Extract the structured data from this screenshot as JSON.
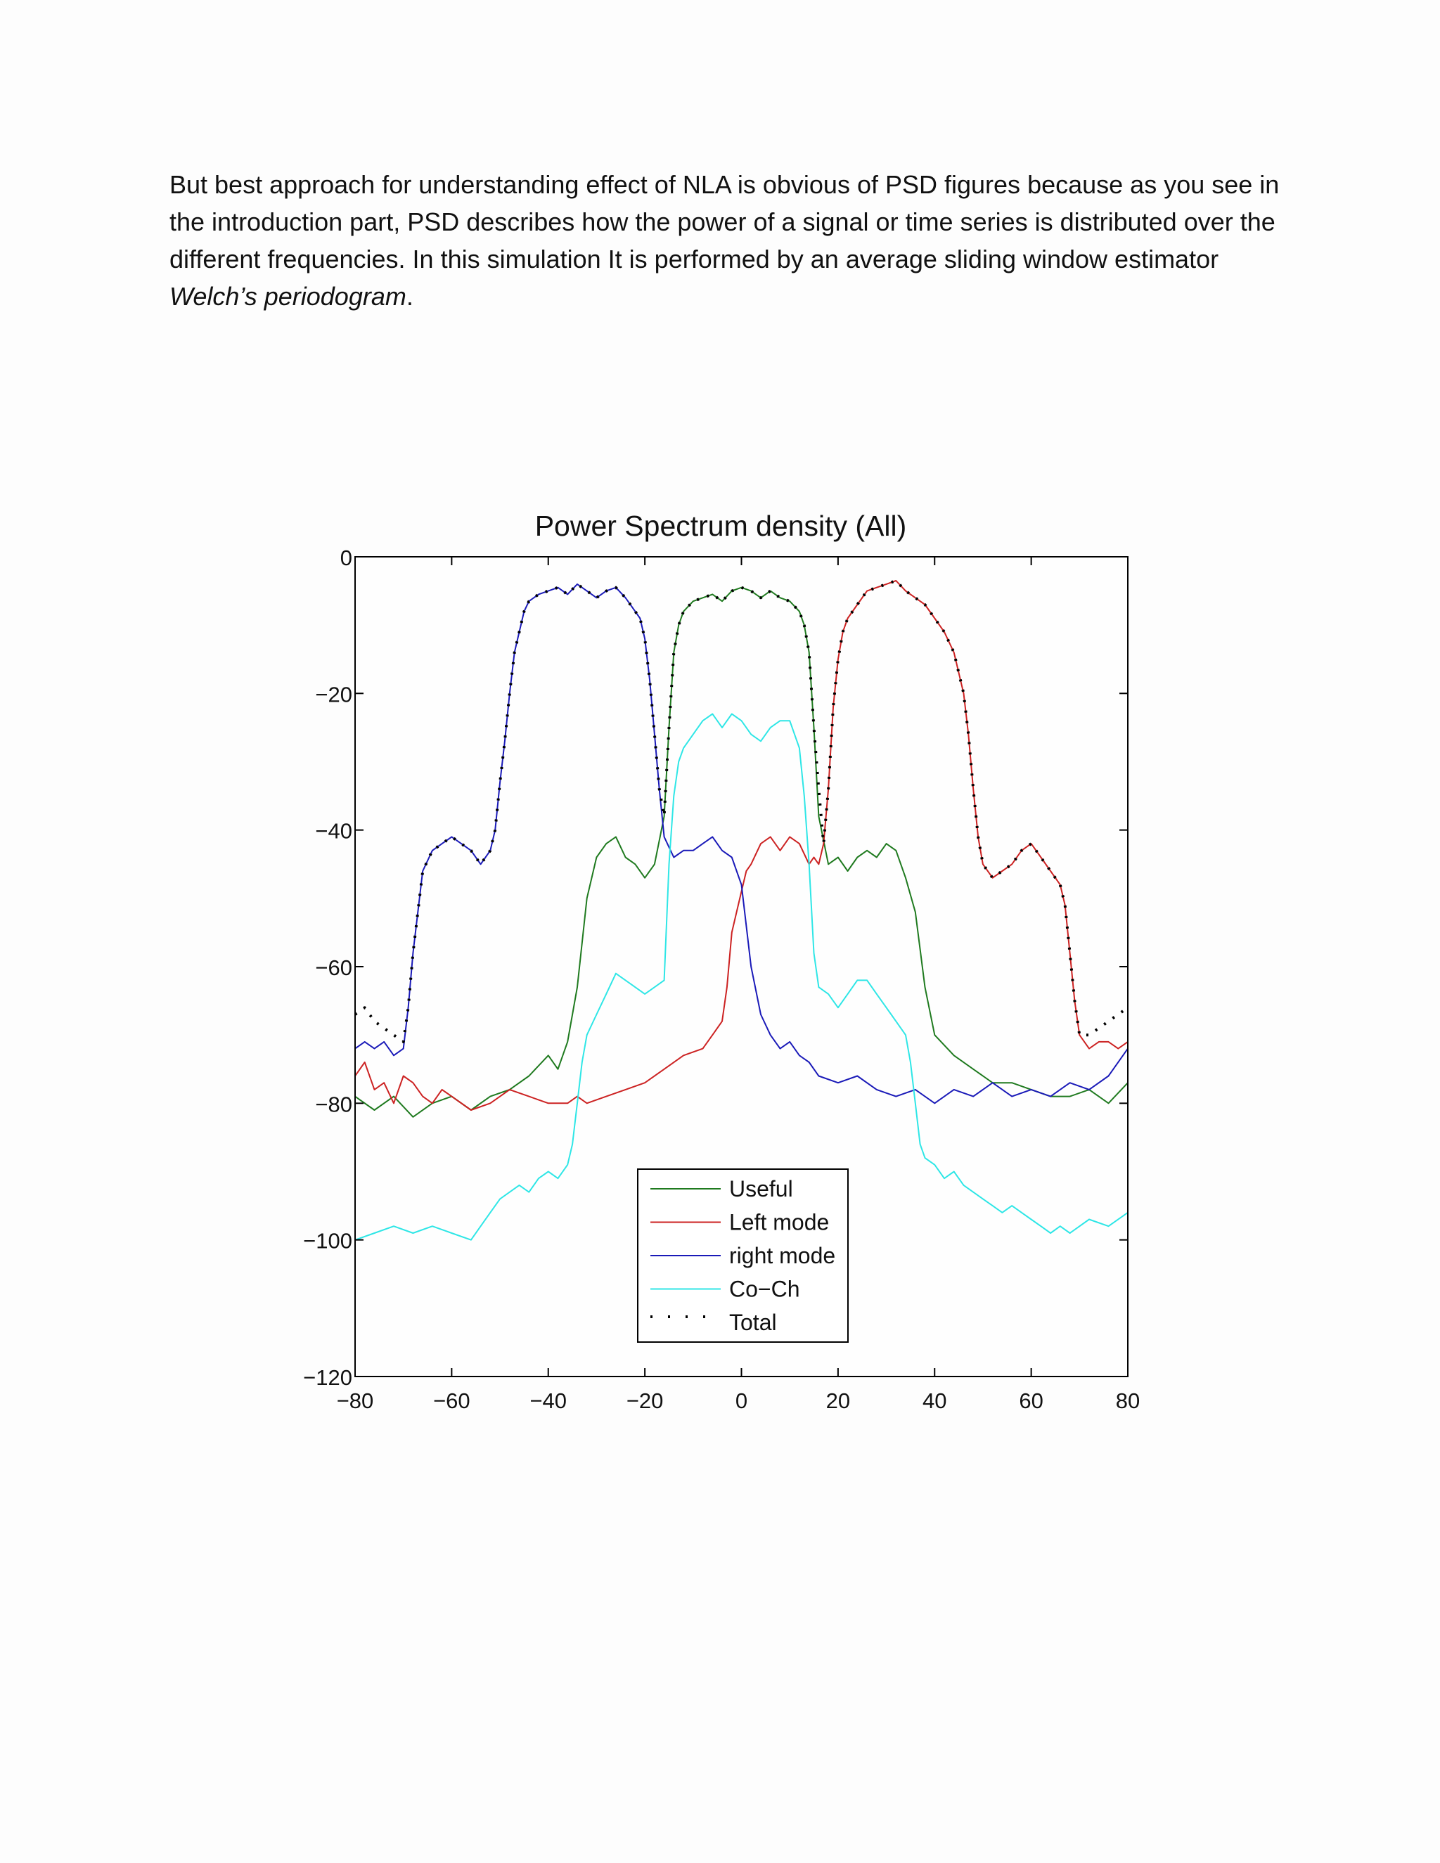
{
  "document": {
    "paragraph_lead": "But best approach for understanding effect of NLA is obvious of PSD figures because as you see in the introduction part, PSD describes how the power of a signal or time series is distributed over the different frequencies. In this simulation It is performed by an average sliding window estimator ",
    "paragraph_italic": "Welch’s periodogram",
    "paragraph_tail": "."
  },
  "chart_data": {
    "type": "line",
    "title": "Power Spectrum density (All)",
    "xlabel": "",
    "ylabel": "",
    "xlim": [
      -80,
      80
    ],
    "ylim": [
      -120,
      0
    ],
    "xticks": [
      -80,
      -60,
      -40,
      -20,
      0,
      20,
      40,
      60,
      80
    ],
    "yticks": [
      0,
      -20,
      -40,
      -60,
      -80,
      -100,
      -120
    ],
    "grid": false,
    "legend_position": "bottom-center",
    "series": [
      {
        "name": "Useful",
        "color": "#1f7a1f",
        "style": "solid",
        "x": [
          -80,
          -76,
          -72,
          -68,
          -64,
          -60,
          -56,
          -52,
          -48,
          -44,
          -40,
          -38,
          -36,
          -34,
          -32,
          -30,
          -28,
          -26,
          -24,
          -22,
          -20,
          -18,
          -16,
          -15,
          -14,
          -13,
          -12,
          -10,
          -8,
          -6,
          -4,
          -2,
          0,
          2,
          4,
          6,
          8,
          10,
          12,
          13,
          14,
          15,
          16,
          18,
          20,
          22,
          24,
          26,
          28,
          30,
          32,
          34,
          36,
          38,
          40,
          44,
          48,
          52,
          56,
          60,
          64,
          68,
          72,
          76,
          80
        ],
        "y": [
          -79,
          -81,
          -79,
          -82,
          -80,
          -79,
          -81,
          -79,
          -78,
          -76,
          -73,
          -75,
          -71,
          -63,
          -50,
          -44,
          -42,
          -41,
          -44,
          -45,
          -47,
          -45,
          -38,
          -25,
          -14,
          -10,
          -8,
          -6.5,
          -6,
          -5.5,
          -6.5,
          -5,
          -4.5,
          -5,
          -6,
          -5,
          -6,
          -6.5,
          -8,
          -10,
          -14,
          -25,
          -38,
          -45,
          -44,
          -46,
          -44,
          -43,
          -44,
          -42,
          -43,
          -47,
          -52,
          -63,
          -70,
          -73,
          -75,
          -77,
          -77,
          -78,
          -79,
          -79,
          -78,
          -80,
          -77
        ]
      },
      {
        "name": "Left mode",
        "color": "#cc2222",
        "style": "solid",
        "x": [
          -80,
          -78,
          -76,
          -74,
          -72,
          -70,
          -68,
          -66,
          -64,
          -62,
          -60,
          -56,
          -52,
          -48,
          -44,
          -40,
          -36,
          -34,
          -32,
          -28,
          -24,
          -20,
          -16,
          -12,
          -8,
          -6,
          -4,
          -3,
          -2,
          -1,
          0,
          1,
          2,
          4,
          6,
          8,
          10,
          12,
          14,
          15,
          16,
          17,
          18,
          19,
          20,
          21,
          22,
          24,
          26,
          28,
          30,
          32,
          34,
          36,
          38,
          40,
          42,
          44,
          46,
          47,
          48,
          49,
          50,
          52,
          54,
          56,
          58,
          60,
          62,
          64,
          66,
          67,
          68,
          69,
          70,
          72,
          74,
          76,
          78,
          80
        ],
        "y": [
          -76,
          -74,
          -78,
          -77,
          -80,
          -76,
          -77,
          -79,
          -80,
          -78,
          -79,
          -81,
          -80,
          -78,
          -79,
          -80,
          -80,
          -79,
          -80,
          -79,
          -78,
          -77,
          -75,
          -73,
          -72,
          -70,
          -68,
          -63,
          -55,
          -52,
          -49,
          -46,
          -45,
          -42,
          -41,
          -43,
          -41,
          -42,
          -45,
          -44,
          -45,
          -42,
          -34,
          -22,
          -15,
          -11,
          -9,
          -7,
          -5,
          -4.5,
          -4,
          -3.5,
          -5,
          -6,
          -7,
          -9,
          -11,
          -14,
          -20,
          -26,
          -34,
          -41,
          -45,
          -47,
          -46,
          -45,
          -43,
          -42,
          -44,
          -46,
          -48,
          -51,
          -58,
          -65,
          -70,
          -72,
          -71,
          -71,
          -72,
          -71
        ]
      },
      {
        "name": "right mode",
        "color": "#1a1ab8",
        "style": "solid",
        "x": [
          -80,
          -78,
          -76,
          -74,
          -72,
          -70,
          -69,
          -68,
          -67,
          -66,
          -64,
          -62,
          -60,
          -58,
          -56,
          -54,
          -53,
          -52,
          -51,
          -50,
          -49,
          -48,
          -47,
          -46,
          -45,
          -44,
          -42,
          -40,
          -38,
          -36,
          -34,
          -32,
          -30,
          -28,
          -26,
          -24,
          -22,
          -21,
          -20,
          -19,
          -18,
          -17,
          -16,
          -14,
          -12,
          -10,
          -8,
          -6,
          -4,
          -2,
          0,
          2,
          4,
          6,
          8,
          10,
          12,
          14,
          16,
          20,
          24,
          28,
          32,
          36,
          40,
          44,
          48,
          52,
          56,
          60,
          64,
          68,
          72,
          76,
          80
        ],
        "y": [
          -72,
          -71,
          -72,
          -71,
          -73,
          -72,
          -66,
          -58,
          -52,
          -46,
          -43,
          -42,
          -41,
          -42,
          -43,
          -45,
          -44,
          -43,
          -40,
          -33,
          -27,
          -20,
          -14,
          -11,
          -8,
          -6.5,
          -5.5,
          -5,
          -4.5,
          -5.5,
          -4,
          -5,
          -6,
          -5,
          -4.5,
          -6,
          -8,
          -9,
          -12,
          -18,
          -26,
          -34,
          -41,
          -44,
          -43,
          -43,
          -42,
          -41,
          -43,
          -44,
          -48,
          -60,
          -67,
          -70,
          -72,
          -71,
          -73,
          -74,
          -76,
          -77,
          -76,
          -78,
          -79,
          -78,
          -80,
          -78,
          -79,
          -77,
          -79,
          -78,
          -79,
          -77,
          -78,
          -76,
          -72
        ]
      },
      {
        "name": "Co−Ch",
        "color": "#2ee6e6",
        "style": "solid",
        "x": [
          -80,
          -76,
          -72,
          -68,
          -64,
          -60,
          -56,
          -54,
          -52,
          -50,
          -48,
          -46,
          -44,
          -42,
          -40,
          -38,
          -36,
          -35,
          -34,
          -33,
          -32,
          -30,
          -28,
          -26,
          -24,
          -22,
          -20,
          -18,
          -16,
          -15,
          -14,
          -13,
          -12,
          -10,
          -8,
          -6,
          -4,
          -2,
          0,
          2,
          4,
          6,
          8,
          10,
          12,
          13,
          14,
          15,
          16,
          18,
          20,
          22,
          24,
          26,
          28,
          30,
          32,
          34,
          35,
          36,
          37,
          38,
          40,
          42,
          44,
          46,
          48,
          50,
          52,
          54,
          56,
          58,
          60,
          62,
          64,
          66,
          68,
          72,
          76,
          80
        ],
        "y": [
          -100,
          -99,
          -98,
          -99,
          -98,
          -99,
          -100,
          -98,
          -96,
          -94,
          -93,
          -92,
          -93,
          -91,
          -90,
          -91,
          -89,
          -86,
          -80,
          -74,
          -70,
          -67,
          -64,
          -61,
          -62,
          -63,
          -64,
          -63,
          -62,
          -45,
          -35,
          -30,
          -28,
          -26,
          -24,
          -23,
          -25,
          -23,
          -24,
          -26,
          -27,
          -25,
          -24,
          -24,
          -28,
          -35,
          -45,
          -58,
          -63,
          -64,
          -66,
          -64,
          -62,
          -62,
          -64,
          -66,
          -68,
          -70,
          -74,
          -80,
          -86,
          -88,
          -89,
          -91,
          -90,
          -92,
          -93,
          -94,
          -95,
          -96,
          -95,
          -96,
          -97,
          -98,
          -99,
          -98,
          -99,
          -97,
          -98,
          -96
        ]
      },
      {
        "name": "Total",
        "color": "#000000",
        "style": "dotted",
        "x": [
          -80,
          -78,
          -76,
          -74,
          -72,
          -70,
          -69,
          -68,
          -67,
          -66,
          -64,
          -62,
          -60,
          -58,
          -56,
          -54,
          -53,
          -52,
          -51,
          -50,
          -49,
          -48,
          -47,
          -46,
          -45,
          -44,
          -42,
          -40,
          -38,
          -36,
          -34,
          -32,
          -30,
          -28,
          -26,
          -24,
          -22,
          -21,
          -20,
          -19,
          -18,
          -17,
          -16,
          -15,
          -14,
          -13,
          -12,
          -10,
          -8,
          -6,
          -4,
          -2,
          0,
          2,
          4,
          6,
          8,
          10,
          12,
          13,
          14,
          15,
          16,
          17,
          18,
          19,
          20,
          21,
          22,
          24,
          26,
          28,
          30,
          32,
          34,
          36,
          38,
          40,
          42,
          44,
          46,
          47,
          48,
          49,
          50,
          52,
          54,
          56,
          58,
          60,
          62,
          64,
          66,
          67,
          68,
          69,
          70,
          72,
          74,
          76,
          78,
          80
        ],
        "y": [
          -67,
          -66,
          -68,
          -69,
          -70,
          -71,
          -66,
          -58,
          -52,
          -46,
          -43,
          -42,
          -41,
          -42,
          -43,
          -45,
          -44,
          -43,
          -40,
          -33,
          -27,
          -20,
          -14,
          -11,
          -8,
          -6.5,
          -5.5,
          -5,
          -4.5,
          -5.5,
          -4,
          -5,
          -6,
          -5,
          -4.5,
          -6,
          -8,
          -9,
          -12,
          -18,
          -26,
          -34,
          -38,
          -25,
          -14,
          -10,
          -8,
          -6.5,
          -6,
          -5.5,
          -6.5,
          -5,
          -4.5,
          -5,
          -6,
          -5,
          -6,
          -6.5,
          -8,
          -10,
          -14,
          -25,
          -34,
          -42,
          -34,
          -22,
          -15,
          -11,
          -9,
          -7,
          -5,
          -4.5,
          -4,
          -3.5,
          -5,
          -6,
          -7,
          -9,
          -11,
          -14,
          -20,
          -26,
          -34,
          -41,
          -45,
          -47,
          -46,
          -45,
          -43,
          -42,
          -44,
          -46,
          -48,
          -51,
          -58,
          -65,
          -70,
          -70,
          -69,
          -68,
          -67,
          -66
        ]
      }
    ]
  }
}
